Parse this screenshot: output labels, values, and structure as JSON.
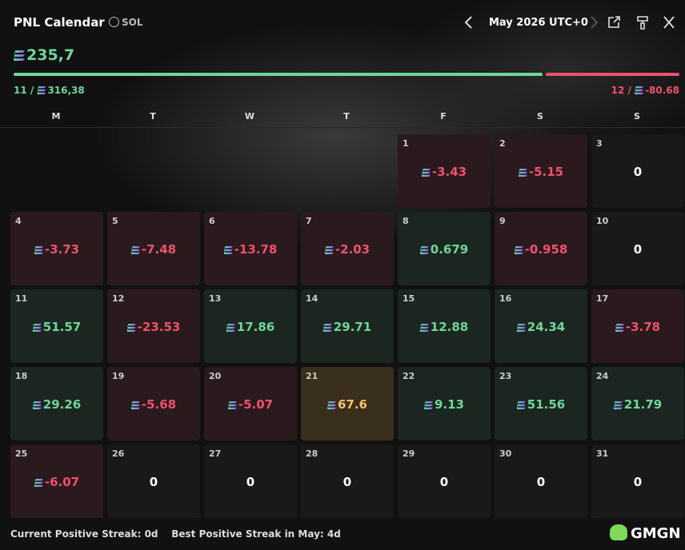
{
  "header": {
    "title": "PNL Calendar",
    "currency": "SOL",
    "month": "May 2026 UTC+0"
  },
  "summary": {
    "total": "235,7",
    "wins": "11",
    "win_amount": "316,38",
    "losses": "12",
    "loss_amount": "-80.68"
  },
  "weekdays": [
    "M",
    "T",
    "W",
    "T",
    "F",
    "S",
    "S"
  ],
  "days": [
    {
      "day": 1,
      "pnl": -3.43
    },
    {
      "day": 2,
      "pnl": -5.15
    },
    {
      "day": 3,
      "pnl": 0
    },
    {
      "day": 4,
      "pnl": -3.73
    },
    {
      "day": 5,
      "pnl": -7.48
    },
    {
      "day": 6,
      "pnl": -13.78
    },
    {
      "day": 7,
      "pnl": -2.03
    },
    {
      "day": 8,
      "pnl": 0.679
    },
    {
      "day": 9,
      "pnl": -0.958
    },
    {
      "day": 10,
      "pnl": 0
    },
    {
      "day": 11,
      "pnl": 51.57
    },
    {
      "day": 12,
      "pnl": -23.53
    },
    {
      "day": 13,
      "pnl": 17.86
    },
    {
      "day": 14,
      "pnl": 29.71
    },
    {
      "day": 15,
      "pnl": 12.88
    },
    {
      "day": 16,
      "pnl": 24.34
    },
    {
      "day": 17,
      "pnl": -3.78
    },
    {
      "day": 18,
      "pnl": 29.26
    },
    {
      "day": 19,
      "pnl": -5.68
    },
    {
      "day": 20,
      "pnl": -5.07
    },
    {
      "day": 21,
      "pnl": 67.6
    },
    {
      "day": 22,
      "pnl": 9.13
    },
    {
      "day": 23,
      "pnl": 51.56
    },
    {
      "day": 24,
      "pnl": 21.79
    },
    {
      "day": 25,
      "pnl": -6.07
    },
    {
      "day": 26,
      "pnl": 0
    },
    {
      "day": 27,
      "pnl": 0
    },
    {
      "day": 28,
      "pnl": 0
    },
    {
      "day": 29,
      "pnl": 0
    },
    {
      "day": 30,
      "pnl": 0
    },
    {
      "day": 31,
      "pnl": 0
    }
  ],
  "footer": {
    "current_label": "Current Positive Streak:",
    "current": "0d",
    "best_label": "Best Positive Streak in May:",
    "best": "4d"
  },
  "brand": "GMGN"
}
